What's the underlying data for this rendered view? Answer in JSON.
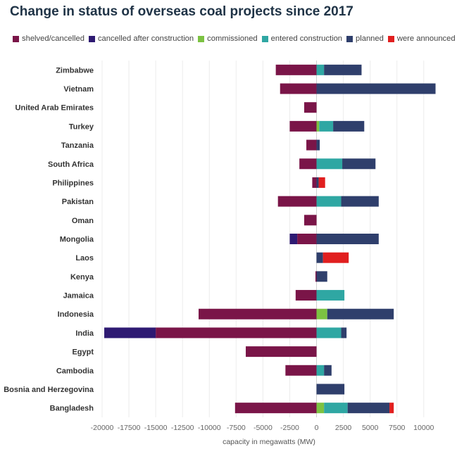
{
  "chart_data": {
    "type": "bar",
    "orientation": "horizontal",
    "stacked": true,
    "title": "Change in status of overseas coal projects since 2017",
    "xlabel": "capacity in megawatts (MW)",
    "ylabel": "",
    "xlim": [
      -20000,
      11000
    ],
    "xticks": [
      -20000,
      -17500,
      -15000,
      -12500,
      -10000,
      -7500,
      -5000,
      -2500,
      0,
      2500,
      5000,
      7500,
      10000
    ],
    "xtick_labels": [
      "-20000",
      "-17500",
      "-15000",
      "-12500",
      "-10000",
      "-7500",
      "-5000",
      "-2500",
      "0",
      "2500",
      "5000",
      "7500",
      "10000"
    ],
    "grid": "vertical",
    "legend_position": "top",
    "categories": [
      "Zimbabwe",
      "Vietnam",
      "United Arab Emirates",
      "Turkey",
      "Tanzania",
      "South Africa",
      "Philippines",
      "Pakistan",
      "Oman",
      "Mongolia",
      "Laos",
      "Kenya",
      "Jamaica",
      "Indonesia",
      "India",
      "Egypt",
      "Cambodia",
      "Bosnia and Herzegovina",
      "Bangladesh"
    ],
    "series": [
      {
        "name": "shelved/cancelled",
        "color": "#7a1548",
        "values": [
          -3800,
          -3400,
          -1150,
          -2500,
          -950,
          -1600,
          -400,
          -3600,
          -1150,
          -1800,
          0,
          -100,
          -1950,
          -11000,
          -15000,
          -6600,
          -2900,
          0,
          -7600
        ]
      },
      {
        "name": "cancelled after construction",
        "color": "#2e1a72",
        "values": [
          0,
          0,
          0,
          0,
          0,
          0,
          0,
          0,
          0,
          -700,
          0,
          0,
          0,
          0,
          -4800,
          0,
          0,
          0,
          0
        ]
      },
      {
        "name": "commissioned",
        "color": "#7cc242",
        "values": [
          0,
          0,
          0,
          250,
          0,
          0,
          0,
          0,
          0,
          0,
          0,
          0,
          0,
          1000,
          0,
          0,
          0,
          0,
          700
        ]
      },
      {
        "name": "entered construction",
        "color": "#2fa7a3",
        "values": [
          700,
          0,
          0,
          1300,
          0,
          2400,
          0,
          2300,
          0,
          0,
          0,
          0,
          2600,
          0,
          2300,
          0,
          700,
          0,
          2200
        ]
      },
      {
        "name": "planned",
        "color": "#2f3f6c",
        "values": [
          3500,
          11100,
          0,
          2900,
          300,
          3100,
          200,
          3500,
          0,
          5800,
          600,
          1000,
          0,
          6200,
          500,
          0,
          700,
          2600,
          3900
        ]
      },
      {
        "name": "were announced",
        "color": "#e11f1f",
        "values": [
          0,
          0,
          0,
          0,
          0,
          0,
          600,
          0,
          0,
          0,
          2400,
          0,
          0,
          0,
          0,
          0,
          0,
          0,
          400
        ]
      }
    ]
  }
}
